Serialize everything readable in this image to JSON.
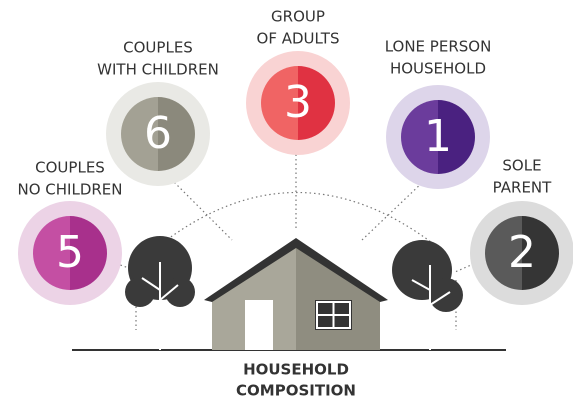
{
  "title_lines": [
    "HOUSEHOLD",
    "COMPOSITION"
  ],
  "nodes": [
    {
      "label_lines": [
        "COUPLES",
        "NO CHILDREN"
      ],
      "number": 5
    },
    {
      "label_lines": [
        "COUPLES",
        "WITH CHILDREN"
      ],
      "number": 6
    },
    {
      "label_lines": [
        "GROUP",
        "OF ADULTS"
      ],
      "number": 3
    },
    {
      "label_lines": [
        "LONE PERSON",
        "HOUSEHOLD"
      ],
      "number": 1
    },
    {
      "label_lines": [
        "SOLE",
        "PARENT"
      ],
      "number": 2
    }
  ]
}
